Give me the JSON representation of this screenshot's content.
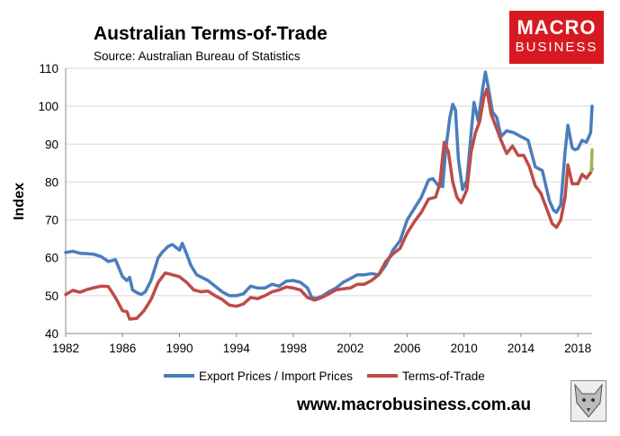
{
  "header": {
    "title": "Australian Terms-of-Trade",
    "subtitle": "Source: Australian Bureau of Statistics"
  },
  "logo": {
    "line1": "MACRO",
    "line2": "BUSINESS",
    "color": "#d71a21"
  },
  "footer": {
    "url": "www.macrobusiness.com.au"
  },
  "chart_data": {
    "type": "line",
    "title": "Australian Terms-of-Trade",
    "ylabel": "Index",
    "xlabel": "",
    "xlim": [
      1982,
      2019
    ],
    "ylim": [
      40,
      110
    ],
    "x_ticks": [
      "1982",
      "1986",
      "1990",
      "1994",
      "1998",
      "2002",
      "2006",
      "2010",
      "2014",
      "2018"
    ],
    "y_ticks": [
      "40",
      "50",
      "60",
      "70",
      "80",
      "90",
      "100",
      "110"
    ],
    "grid": "horizontal",
    "legend_position": "bottom",
    "series": [
      {
        "name": "Export Prices / Import Prices",
        "color": "#4a7ebb",
        "points": [
          [
            1982.0,
            61.4
          ],
          [
            1982.5,
            61.7
          ],
          [
            1983.0,
            61.2
          ],
          [
            1983.5,
            61.1
          ],
          [
            1984.0,
            60.9
          ],
          [
            1984.5,
            60.3
          ],
          [
            1985.0,
            59.0
          ],
          [
            1985.5,
            59.5
          ],
          [
            1986.0,
            55.0
          ],
          [
            1986.3,
            54.0
          ],
          [
            1986.5,
            54.8
          ],
          [
            1986.7,
            51.5
          ],
          [
            1987.0,
            50.8
          ],
          [
            1987.3,
            50.3
          ],
          [
            1987.6,
            51.0
          ],
          [
            1988.0,
            54.0
          ],
          [
            1988.5,
            60.0
          ],
          [
            1988.8,
            61.5
          ],
          [
            1989.2,
            63.0
          ],
          [
            1989.5,
            63.5
          ],
          [
            1990.0,
            62.0
          ],
          [
            1990.2,
            63.8
          ],
          [
            1990.5,
            61.0
          ],
          [
            1990.8,
            58.0
          ],
          [
            1991.2,
            55.5
          ],
          [
            1992.0,
            54.0
          ],
          [
            1993.0,
            51.0
          ],
          [
            1993.5,
            50.0
          ],
          [
            1994.0,
            50.0
          ],
          [
            1994.5,
            50.5
          ],
          [
            1995.0,
            52.5
          ],
          [
            1995.5,
            52.0
          ],
          [
            1996.0,
            52.0
          ],
          [
            1996.5,
            53.0
          ],
          [
            1997.0,
            52.5
          ],
          [
            1997.5,
            53.8
          ],
          [
            1998.0,
            54.0
          ],
          [
            1998.5,
            53.5
          ],
          [
            1999.0,
            52.0
          ],
          [
            1999.3,
            49.5
          ],
          [
            1999.6,
            49.3
          ],
          [
            2000.0,
            49.8
          ],
          [
            2000.5,
            51.0
          ],
          [
            2001.0,
            52.0
          ],
          [
            2001.5,
            53.5
          ],
          [
            2002.0,
            54.5
          ],
          [
            2002.5,
            55.5
          ],
          [
            2003.0,
            55.5
          ],
          [
            2003.5,
            55.8
          ],
          [
            2004.0,
            55.5
          ],
          [
            2004.5,
            58.0
          ],
          [
            2005.0,
            62.0
          ],
          [
            2005.5,
            64.5
          ],
          [
            2006.0,
            70.0
          ],
          [
            2006.5,
            73.0
          ],
          [
            2007.0,
            76.0
          ],
          [
            2007.5,
            80.5
          ],
          [
            2007.8,
            80.9
          ],
          [
            2008.2,
            79.0
          ],
          [
            2008.5,
            78.8
          ],
          [
            2008.7,
            88.0
          ],
          [
            2009.0,
            97.0
          ],
          [
            2009.2,
            100.5
          ],
          [
            2009.4,
            99.0
          ],
          [
            2009.6,
            86.0
          ],
          [
            2009.9,
            78.0
          ],
          [
            2010.2,
            80.5
          ],
          [
            2010.5,
            93.0
          ],
          [
            2010.7,
            101.0
          ],
          [
            2011.0,
            96.0
          ],
          [
            2011.3,
            104.5
          ],
          [
            2011.5,
            109.0
          ],
          [
            2011.7,
            105.0
          ],
          [
            2012.0,
            98.5
          ],
          [
            2012.3,
            97.0
          ],
          [
            2012.6,
            92.0
          ],
          [
            2013.0,
            93.5
          ],
          [
            2013.5,
            93.0
          ],
          [
            2014.0,
            92.0
          ],
          [
            2014.5,
            91.0
          ],
          [
            2015.0,
            84.0
          ],
          [
            2015.5,
            83.0
          ],
          [
            2016.0,
            75.0
          ],
          [
            2016.3,
            72.5
          ],
          [
            2016.5,
            72.0
          ],
          [
            2016.8,
            74.0
          ],
          [
            2017.1,
            88.0
          ],
          [
            2017.3,
            95.0
          ],
          [
            2017.6,
            89.0
          ],
          [
            2017.8,
            88.5
          ],
          [
            2018.0,
            88.8
          ],
          [
            2018.3,
            91.0
          ],
          [
            2018.6,
            90.5
          ],
          [
            2018.9,
            93.0
          ],
          [
            2019.0,
            100.0
          ]
        ]
      },
      {
        "name": "Terms-of-Trade",
        "color": "#be4b48",
        "points": [
          [
            1982.0,
            50.3
          ],
          [
            1982.5,
            51.4
          ],
          [
            1983.0,
            50.9
          ],
          [
            1983.5,
            51.6
          ],
          [
            1984.0,
            52.1
          ],
          [
            1984.5,
            52.5
          ],
          [
            1985.0,
            52.4
          ],
          [
            1985.5,
            49.5
          ],
          [
            1986.0,
            46.0
          ],
          [
            1986.3,
            45.8
          ],
          [
            1986.5,
            43.8
          ],
          [
            1987.0,
            44.0
          ],
          [
            1987.5,
            46.0
          ],
          [
            1988.0,
            49.0
          ],
          [
            1988.5,
            53.5
          ],
          [
            1989.0,
            56.0
          ],
          [
            1989.5,
            55.5
          ],
          [
            1990.0,
            55.0
          ],
          [
            1990.5,
            53.5
          ],
          [
            1991.0,
            51.5
          ],
          [
            1991.5,
            51.0
          ],
          [
            1992.0,
            51.2
          ],
          [
            1992.5,
            50.0
          ],
          [
            1993.0,
            49.0
          ],
          [
            1993.5,
            47.5
          ],
          [
            1994.0,
            47.2
          ],
          [
            1994.5,
            47.8
          ],
          [
            1995.0,
            49.5
          ],
          [
            1995.5,
            49.2
          ],
          [
            1996.0,
            50.0
          ],
          [
            1996.5,
            51.0
          ],
          [
            1997.0,
            51.5
          ],
          [
            1997.5,
            52.3
          ],
          [
            1998.0,
            52.0
          ],
          [
            1998.5,
            51.5
          ],
          [
            1999.0,
            49.5
          ],
          [
            1999.5,
            48.8
          ],
          [
            2000.0,
            49.5
          ],
          [
            2000.5,
            50.5
          ],
          [
            2001.0,
            51.5
          ],
          [
            2001.5,
            51.8
          ],
          [
            2002.0,
            52.0
          ],
          [
            2002.5,
            53.0
          ],
          [
            2003.0,
            53.0
          ],
          [
            2003.5,
            54.0
          ],
          [
            2004.0,
            55.5
          ],
          [
            2004.5,
            59.0
          ],
          [
            2005.0,
            61.0
          ],
          [
            2005.5,
            62.5
          ],
          [
            2006.0,
            66.5
          ],
          [
            2006.5,
            69.5
          ],
          [
            2007.0,
            72.0
          ],
          [
            2007.5,
            75.5
          ],
          [
            2008.0,
            76.0
          ],
          [
            2008.3,
            79.5
          ],
          [
            2008.6,
            90.5
          ],
          [
            2008.9,
            88.0
          ],
          [
            2009.2,
            80.0
          ],
          [
            2009.5,
            76.0
          ],
          [
            2009.8,
            74.5
          ],
          [
            2010.2,
            78.0
          ],
          [
            2010.5,
            88.0
          ],
          [
            2010.8,
            93.0
          ],
          [
            2011.1,
            96.0
          ],
          [
            2011.4,
            102.5
          ],
          [
            2011.6,
            104.5
          ],
          [
            2011.9,
            98.0
          ],
          [
            2012.2,
            95.0
          ],
          [
            2012.6,
            91.0
          ],
          [
            2013.0,
            87.5
          ],
          [
            2013.4,
            89.5
          ],
          [
            2013.8,
            87.0
          ],
          [
            2014.2,
            87.0
          ],
          [
            2014.6,
            84.0
          ],
          [
            2015.0,
            79.0
          ],
          [
            2015.4,
            77.0
          ],
          [
            2015.8,
            73.0
          ],
          [
            2016.2,
            69.0
          ],
          [
            2016.5,
            68.0
          ],
          [
            2016.8,
            70.0
          ],
          [
            2017.1,
            76.0
          ],
          [
            2017.3,
            84.5
          ],
          [
            2017.6,
            79.5
          ],
          [
            2018.0,
            79.5
          ],
          [
            2018.3,
            82.0
          ],
          [
            2018.6,
            81.0
          ],
          [
            2018.9,
            82.5
          ],
          [
            2019.0,
            83.5
          ]
        ]
      }
    ],
    "forecast_segment": {
      "color": "#98b954",
      "points": [
        [
          2018.95,
          83.0
        ],
        [
          2019.0,
          88.5
        ]
      ]
    }
  }
}
